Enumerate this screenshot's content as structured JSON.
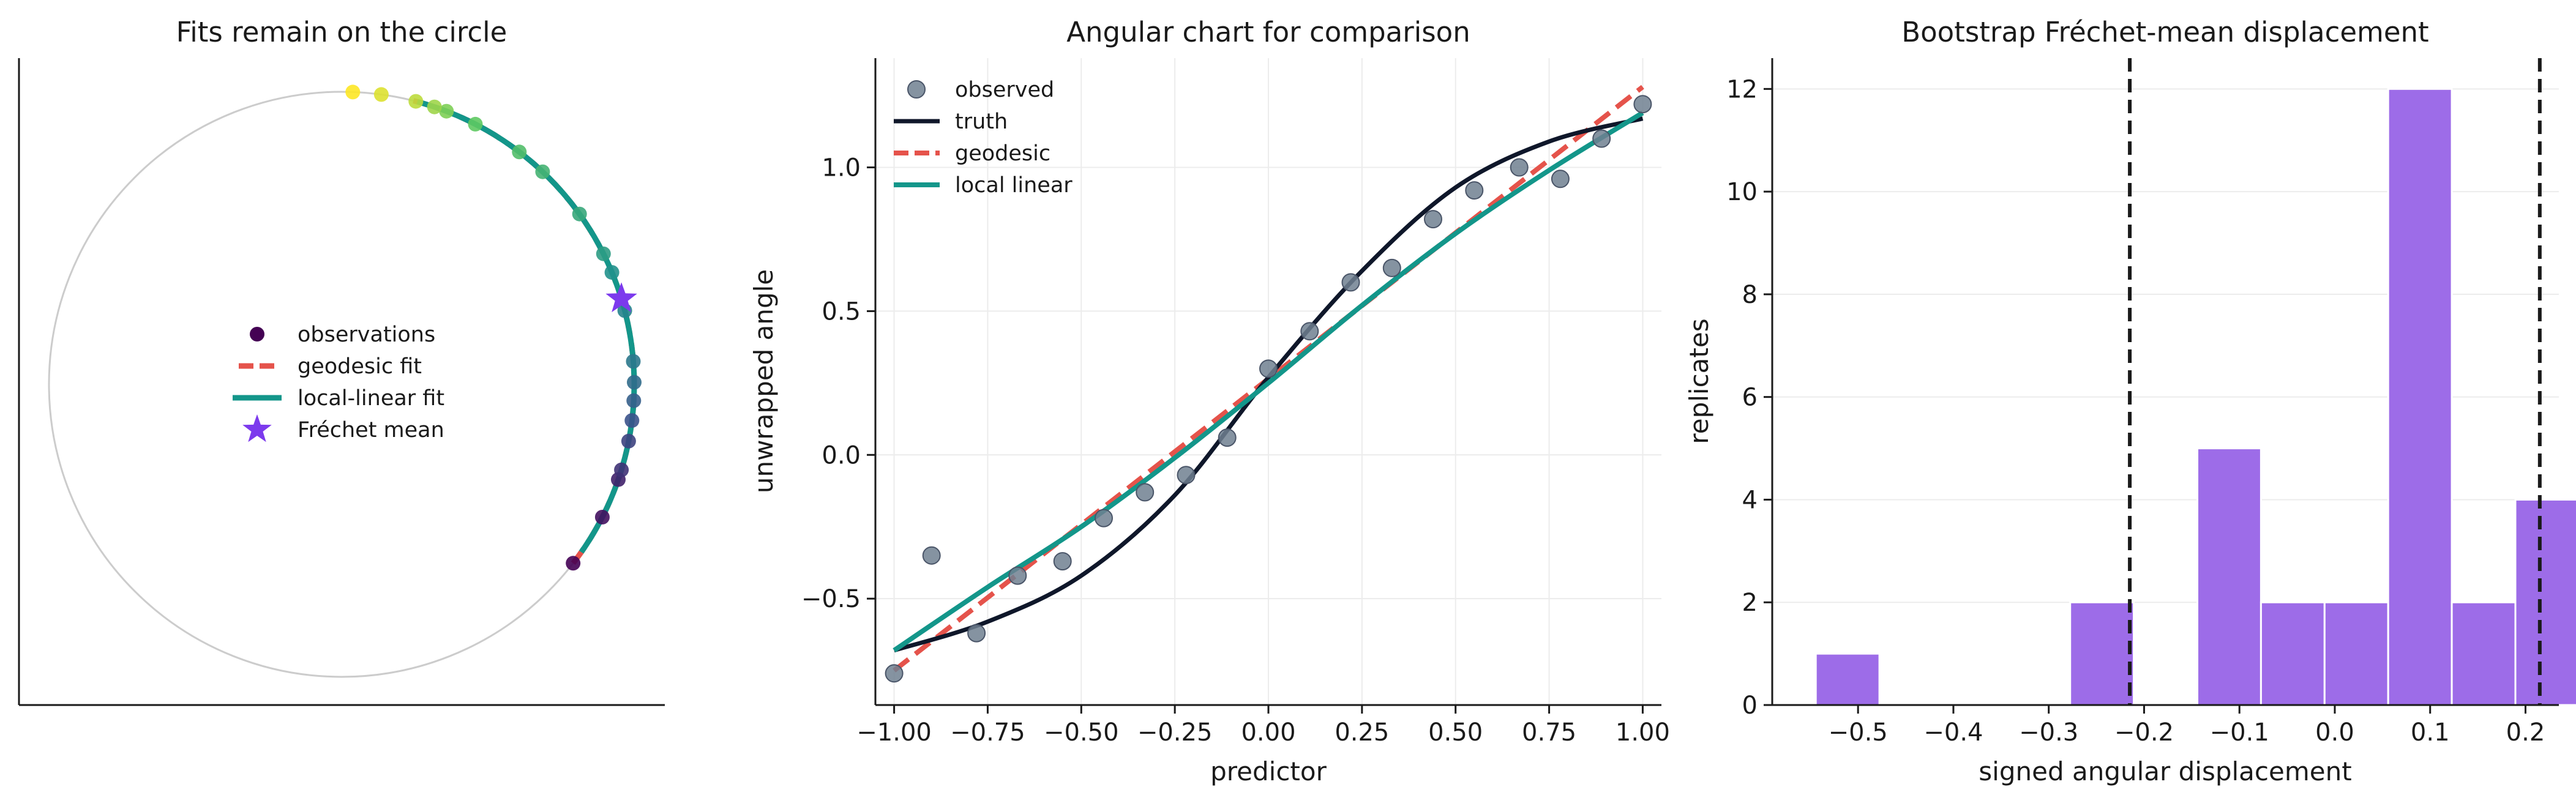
{
  "colors": {
    "observed": "#708090",
    "truth": "#0f172a",
    "geodesic": "#e5534b",
    "local_linear": "#13968a",
    "frechet": "#7c3aed",
    "hist": "#9d6ce8",
    "circle": "#cccccc"
  },
  "chart_data": [
    {
      "type": "scatter",
      "title": "Fits remain on the circle",
      "legend_position": "center",
      "legend": [
        "observations",
        "geodesic fit",
        "local-linear fit",
        "Fréchet mean"
      ],
      "angles_deg": [
        -37.7,
        -27.0,
        -19.0,
        -17.0,
        -11.2,
        -7.1,
        -3.2,
        0.4,
        4.5,
        14.6,
        22.5,
        26.5,
        35.6,
        46.6,
        52.6,
        62.8,
        69.0,
        71.5,
        75.3,
        82.2,
        87.8
      ],
      "frechet_mean_deg": 17.0,
      "geodesic_range_deg": [
        -37.7,
        76.0
      ],
      "local_linear_range_deg": [
        -35.0,
        75.0
      ]
    },
    {
      "type": "line",
      "title": "Angular chart for comparison",
      "xlabel": "predictor",
      "ylabel": "unwrapped angle",
      "xlim": [
        -1.05,
        1.05
      ],
      "ylim": [
        -0.87,
        1.38
      ],
      "xticks": [
        "−1.00",
        "−0.75",
        "−0.50",
        "−0.25",
        "0.00",
        "0.25",
        "0.50",
        "0.75",
        "1.00"
      ],
      "yticks": [
        "−0.5",
        "0.0",
        "0.5",
        "1.0"
      ],
      "legend_position": "top-left",
      "legend": [
        "observed",
        "truth",
        "geodesic",
        "local linear"
      ],
      "observed_x": [
        -1.0,
        -0.9,
        -0.78,
        -0.67,
        -0.55,
        -0.44,
        -0.33,
        -0.22,
        -0.11,
        0.0,
        0.11,
        0.22,
        0.33,
        0.44,
        0.55,
        0.67,
        0.78,
        0.89,
        1.0
      ],
      "observed_y": [
        -0.76,
        -0.35,
        -0.62,
        -0.42,
        -0.37,
        -0.22,
        -0.13,
        -0.07,
        0.06,
        0.3,
        0.43,
        0.6,
        0.65,
        0.82,
        0.92,
        1.0,
        0.96,
        1.1,
        1.22
      ],
      "truth_x": [
        -1.0,
        -0.75,
        -0.5,
        -0.25,
        0.0,
        0.25,
        0.5,
        0.75,
        1.0
      ],
      "truth_y": [
        -0.68,
        -0.58,
        -0.42,
        -0.14,
        0.27,
        0.64,
        0.93,
        1.09,
        1.17
      ],
      "geodesic_x": [
        -1.0,
        1.0
      ],
      "geodesic_y": [
        -0.75,
        1.28
      ],
      "local_linear_x": [
        -1.0,
        -0.75,
        -0.5,
        -0.25,
        0.0,
        0.25,
        0.5,
        0.75,
        1.0
      ],
      "local_linear_y": [
        -0.68,
        -0.46,
        -0.25,
        -0.01,
        0.25,
        0.52,
        0.77,
        0.99,
        1.19
      ]
    },
    {
      "type": "bar",
      "title": "Bootstrap Fréchet-mean displacement",
      "xlabel": "signed angular displacement",
      "ylabel": "replicates",
      "xlim": [
        -0.59,
        0.235
      ],
      "ylim": [
        0,
        12.6
      ],
      "xticks": [
        "−0.5",
        "−0.4",
        "−0.3",
        "−0.2",
        "−0.1",
        "0.0",
        "0.1",
        "0.2"
      ],
      "yticks": [
        "0",
        "2",
        "4",
        "6",
        "8",
        "10",
        "12"
      ],
      "bin_edges": [
        -0.5443,
        -0.4776,
        -0.4109,
        -0.3442,
        -0.2775,
        -0.2108,
        -0.1441,
        -0.0774,
        -0.0107,
        0.056,
        0.1227,
        0.1894
      ],
      "bin_width": 0.0667,
      "counts": [
        1,
        0,
        0,
        0,
        2,
        0,
        5,
        2,
        2,
        12,
        2,
        4
      ],
      "reference_lines": [
        -0.215,
        0.215
      ]
    }
  ]
}
